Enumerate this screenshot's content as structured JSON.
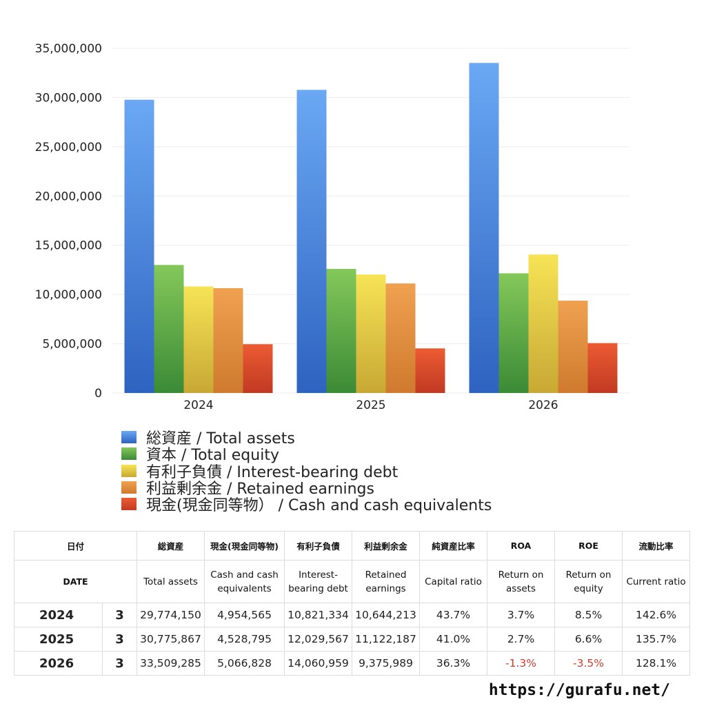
{
  "chart_data": {
    "type": "bar",
    "categories": [
      "2024",
      "2025",
      "2026"
    ],
    "ylim": [
      0,
      35000000
    ],
    "yticks": [
      "0",
      "5,000,000",
      "10,000,000",
      "15,000,000",
      "20,000,000",
      "25,000,000",
      "30,000,000",
      "35,000,000"
    ],
    "ytick_values": [
      0,
      5000000,
      10000000,
      15000000,
      20000000,
      25000000,
      30000000,
      35000000
    ],
    "grid": true,
    "legend_position": "bottom-left",
    "series": [
      {
        "name": "総資産 / Total assets",
        "values": [
          29774150,
          30775867,
          33509285
        ],
        "color_top": "#6aa8f4",
        "color_bottom": "#2e63c0"
      },
      {
        "name": "資本 / Total equity",
        "values": [
          13000000,
          12600000,
          12150000
        ],
        "color_top": "#84c85a",
        "color_bottom": "#3b8a36"
      },
      {
        "name": "有利子負債 / Interest-bearing debt",
        "values": [
          10821334,
          12029567,
          14060959
        ],
        "color_top": "#f7e456",
        "color_bottom": "#c7a834"
      },
      {
        "name": "利益剰余金 / Retained earnings",
        "values": [
          10644213,
          11122187,
          9375989
        ],
        "color_top": "#efa150",
        "color_bottom": "#cf7a2e"
      },
      {
        "name": "現金(現金同等物）  /  Cash and cash equivalents",
        "values": [
          4954565,
          4528795,
          5066828
        ],
        "color_top": "#ec5b33",
        "color_bottom": "#c03a22"
      }
    ]
  },
  "table": {
    "header_jp": [
      "日付",
      "総資産",
      "現金(現金同等物)",
      "有利子負債",
      "利益剰余金",
      "純資産比率",
      "ROA",
      "ROE",
      "流動比率"
    ],
    "header_en": [
      "DATE",
      "Total assets",
      "Cash and cash equivalents",
      "Interest-bearing debt",
      "Retained earnings",
      "Capital ratio",
      "Return on assets",
      "Return on equity",
      "Current ratio"
    ],
    "rows": [
      {
        "year": "2024",
        "month": "3",
        "total_assets": "29,774,150",
        "cash": "4,954,565",
        "debt": "10,821,334",
        "retained": "10,644,213",
        "capital_ratio": "43.7%",
        "roa": "3.7%",
        "roe": "8.5%",
        "current_ratio": "142.6%"
      },
      {
        "year": "2025",
        "month": "3",
        "total_assets": "30,775,867",
        "cash": "4,528,795",
        "debt": "12,029,567",
        "retained": "11,122,187",
        "capital_ratio": "41.0%",
        "roa": "2.7%",
        "roe": "6.6%",
        "current_ratio": "135.7%"
      },
      {
        "year": "2026",
        "month": "3",
        "total_assets": "33,509,285",
        "cash": "5,066,828",
        "debt": "14,060,959",
        "retained": "9,375,989",
        "capital_ratio": "36.3%",
        "roa": "-1.3%",
        "roe": "-3.5%",
        "current_ratio": "128.1%"
      }
    ],
    "negative_color": "#d23b2b"
  },
  "footer": {
    "url": "https://gurafu.net/"
  }
}
